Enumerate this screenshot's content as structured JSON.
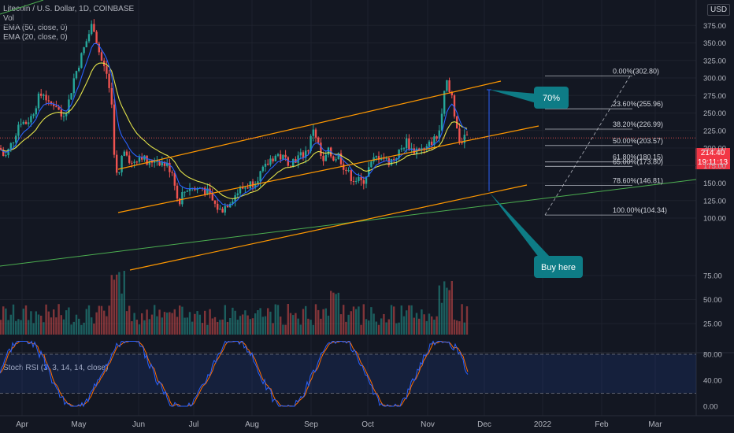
{
  "legend": {
    "symbol": "Litecoin / U.S. Dollar, 1D, COINBASE",
    "vol": "Vol",
    "ema50": "EMA (50, close, 0)",
    "ema20": "EMA (20, close, 0)"
  },
  "stoch_label": "Stoch RSI (3, 3, 14, 14, close)",
  "currency": "USD",
  "last_price": {
    "value": "214.40",
    "countdown": "19:11:13"
  },
  "colors": {
    "bg": "#131722",
    "grid": "#1e222d",
    "up": "#26a69a",
    "down": "#ef5350",
    "ema50": "#e3e34a",
    "ema20": "#2962ff",
    "channel": "#ff9800",
    "trend": "#4caf50",
    "fib": "#b2b5be",
    "callout": "#0e7c86",
    "stoch_k": "#2962ff",
    "stoch_d": "#ff6d00"
  },
  "chart_data": {
    "type": "candlestick",
    "x_ticks": [
      "Apr",
      "May",
      "Jun",
      "Jul",
      "Aug",
      "Sep",
      "Oct",
      "Nov",
      "Dec",
      "2022",
      "Feb",
      "Mar"
    ],
    "y_ticks": [
      "375.00",
      "350.00",
      "325.00",
      "300.00",
      "275.00",
      "250.00",
      "225.00",
      "200.00",
      "175.00",
      "150.00",
      "125.00",
      "100.00",
      "75.00",
      "50.00",
      "25.00"
    ],
    "y_range": [
      0,
      380
    ],
    "price_path": [
      [
        0,
        200
      ],
      [
        6,
        185
      ],
      [
        12,
        200
      ],
      [
        18,
        215
      ],
      [
        25,
        240
      ],
      [
        32,
        235
      ],
      [
        40,
        245
      ],
      [
        48,
        270
      ],
      [
        56,
        280
      ],
      [
        62,
        260
      ],
      [
        70,
        265
      ],
      [
        78,
        245
      ],
      [
        86,
        260
      ],
      [
        94,
        300
      ],
      [
        100,
        320
      ],
      [
        106,
        340
      ],
      [
        112,
        360
      ],
      [
        118,
        380
      ],
      [
        124,
        345
      ],
      [
        130,
        320
      ],
      [
        136,
        305
      ],
      [
        142,
        260
      ],
      [
        146,
        175
      ],
      [
        150,
        150
      ],
      [
        154,
        185
      ],
      [
        160,
        200
      ],
      [
        166,
        175
      ],
      [
        172,
        185
      ],
      [
        180,
        190
      ],
      [
        188,
        175
      ],
      [
        196,
        185
      ],
      [
        204,
        180
      ],
      [
        212,
        175
      ],
      [
        220,
        165
      ],
      [
        226,
        120
      ],
      [
        232,
        135
      ],
      [
        240,
        145
      ],
      [
        248,
        140
      ],
      [
        256,
        145
      ],
      [
        264,
        135
      ],
      [
        272,
        120
      ],
      [
        280,
        110
      ],
      [
        288,
        120
      ],
      [
        296,
        130
      ],
      [
        304,
        140
      ],
      [
        312,
        145
      ],
      [
        320,
        150
      ],
      [
        328,
        160
      ],
      [
        336,
        170
      ],
      [
        344,
        185
      ],
      [
        352,
        190
      ],
      [
        360,
        185
      ],
      [
        368,
        180
      ],
      [
        376,
        185
      ],
      [
        384,
        190
      ],
      [
        392,
        200
      ],
      [
        398,
        230
      ],
      [
        404,
        205
      ],
      [
        410,
        175
      ],
      [
        416,
        195
      ],
      [
        424,
        185
      ],
      [
        430,
        190
      ],
      [
        436,
        175
      ],
      [
        444,
        160
      ],
      [
        452,
        155
      ],
      [
        460,
        150
      ],
      [
        468,
        170
      ],
      [
        476,
        185
      ],
      [
        484,
        190
      ],
      [
        492,
        180
      ],
      [
        500,
        185
      ],
      [
        508,
        195
      ],
      [
        516,
        210
      ],
      [
        524,
        195
      ],
      [
        532,
        200
      ],
      [
        540,
        195
      ],
      [
        548,
        210
      ],
      [
        556,
        215
      ],
      [
        562,
        250
      ],
      [
        566,
        300
      ],
      [
        570,
        280
      ],
      [
        574,
        275
      ],
      [
        578,
        240
      ],
      [
        582,
        215
      ],
      [
        586,
        205
      ],
      [
        590,
        220
      ],
      [
        594,
        214
      ]
    ],
    "fib_levels": [
      {
        "label": "0.00%(302.80)",
        "price": 302.8
      },
      {
        "label": "23.60%(255.96)",
        "price": 255.96
      },
      {
        "label": "38.20%(226.99)",
        "price": 226.99
      },
      {
        "label": "50.00%(203.57)",
        "price": 203.57
      },
      {
        "label": "61.80%(180.15)",
        "price": 180.15
      },
      {
        "label": "65.00%(173.80)",
        "price": 173.8
      },
      {
        "label": "78.60%(146.81)",
        "price": 146.81
      },
      {
        "label": "100.00%(104.34)",
        "price": 104.34
      }
    ],
    "stoch_ticks": [
      "80.00",
      "40.00",
      "0.00"
    ],
    "annotations": [
      {
        "label": "70%"
      },
      {
        "label": "Buy here"
      }
    ]
  }
}
